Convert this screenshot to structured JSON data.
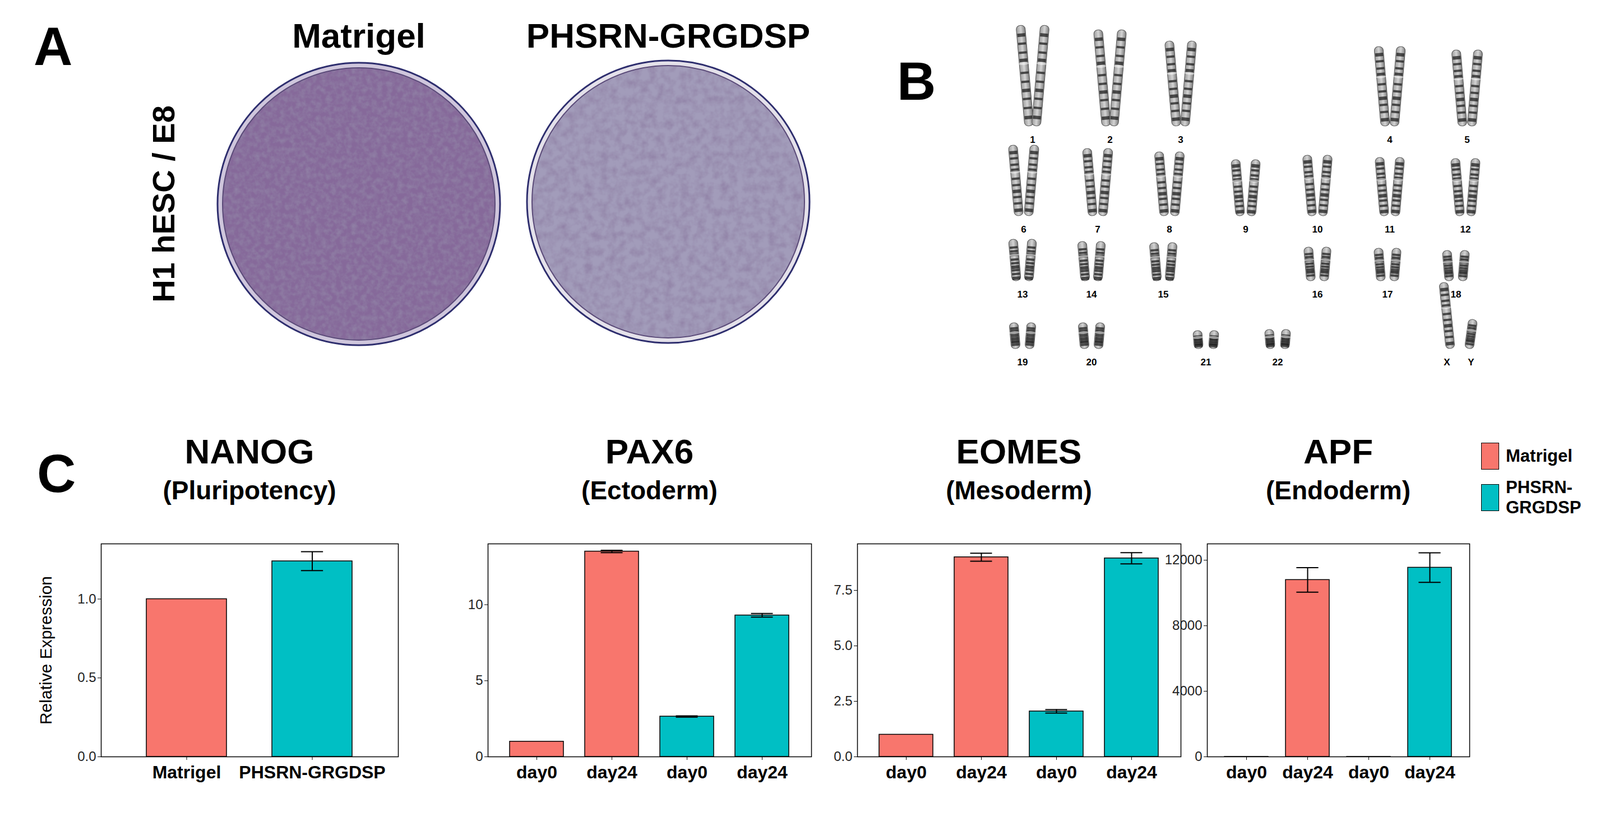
{
  "panels": {
    "A": {
      "label": "A",
      "row_label": "H1 hESC / E8",
      "dishes": [
        "Matrigel",
        "PHSRN-GRGDSP"
      ]
    },
    "B": {
      "label": "B",
      "chromosomes": [
        "1",
        "2",
        "3",
        "4",
        "5",
        "6",
        "7",
        "8",
        "9",
        "10",
        "11",
        "12",
        "13",
        "14",
        "15",
        "16",
        "17",
        "18",
        "19",
        "20",
        "21",
        "22",
        "X",
        "Y"
      ]
    },
    "C": {
      "label": "C"
    }
  },
  "chart_data": [
    {
      "type": "bar",
      "title": "NANOG",
      "subtitle": "(Pluripotency)",
      "y_label": "Relative Expression",
      "categories": [
        "Matrigel",
        "PHSRN-GRGDSP"
      ],
      "values": [
        1.0,
        1.24
      ],
      "errors": [
        null,
        0.06
      ],
      "colors": [
        "#F8766D",
        "#00BFC4"
      ],
      "ylim": [
        0,
        1.35
      ],
      "yticks": [
        {
          "value": 0,
          "label": "0.0"
        },
        {
          "value": 0.5,
          "label": "0.5"
        },
        {
          "value": 1,
          "label": "1.0"
        }
      ]
    },
    {
      "type": "bar",
      "title": "PAX6",
      "subtitle": "(Ectoderm)",
      "categories": [
        "day0",
        "day24",
        "day0",
        "day24"
      ],
      "values": [
        1.0,
        13.5,
        2.65,
        9.3
      ],
      "errors": [
        null,
        0.08,
        0.04,
        0.12
      ],
      "colors": [
        "#F8766D",
        "#F8766D",
        "#00BFC4",
        "#00BFC4"
      ],
      "ylim": [
        0,
        14
      ],
      "yticks": [
        0,
        5,
        10
      ]
    },
    {
      "type": "bar",
      "title": "EOMES",
      "subtitle": "(Mesoderm)",
      "categories": [
        "day0",
        "day24",
        "day0",
        "day24"
      ],
      "values": [
        1.0,
        9.0,
        2.05,
        8.95
      ],
      "errors": [
        null,
        0.18,
        0.08,
        0.25
      ],
      "colors": [
        "#F8766D",
        "#F8766D",
        "#00BFC4",
        "#00BFC4"
      ],
      "ylim": [
        0,
        9.6
      ],
      "yticks": [
        {
          "value": 0,
          "label": "0.0"
        },
        {
          "value": 2.5,
          "label": "2.5"
        },
        {
          "value": 5,
          "label": "5.0"
        },
        {
          "value": 7.5,
          "label": "7.5"
        }
      ]
    },
    {
      "type": "bar",
      "title": "APF",
      "subtitle": "(Endoderm)",
      "categories": [
        "day0",
        "day24",
        "day0",
        "day24"
      ],
      "values": [
        1,
        10800,
        1,
        11550
      ],
      "errors": [
        null,
        750,
        null,
        900
      ],
      "colors": [
        "#F8766D",
        "#F8766D",
        "#00BFC4",
        "#00BFC4"
      ],
      "ylim": [
        0,
        13000
      ],
      "yticks": [
        0,
        4000,
        8000,
        12000
      ],
      "legend": "right",
      "series": [
        {
          "name": "Matrigel",
          "color": "#F8766D"
        },
        {
          "name": "PHSRN-GRGDSP",
          "color": "#00BFC4"
        }
      ]
    }
  ]
}
